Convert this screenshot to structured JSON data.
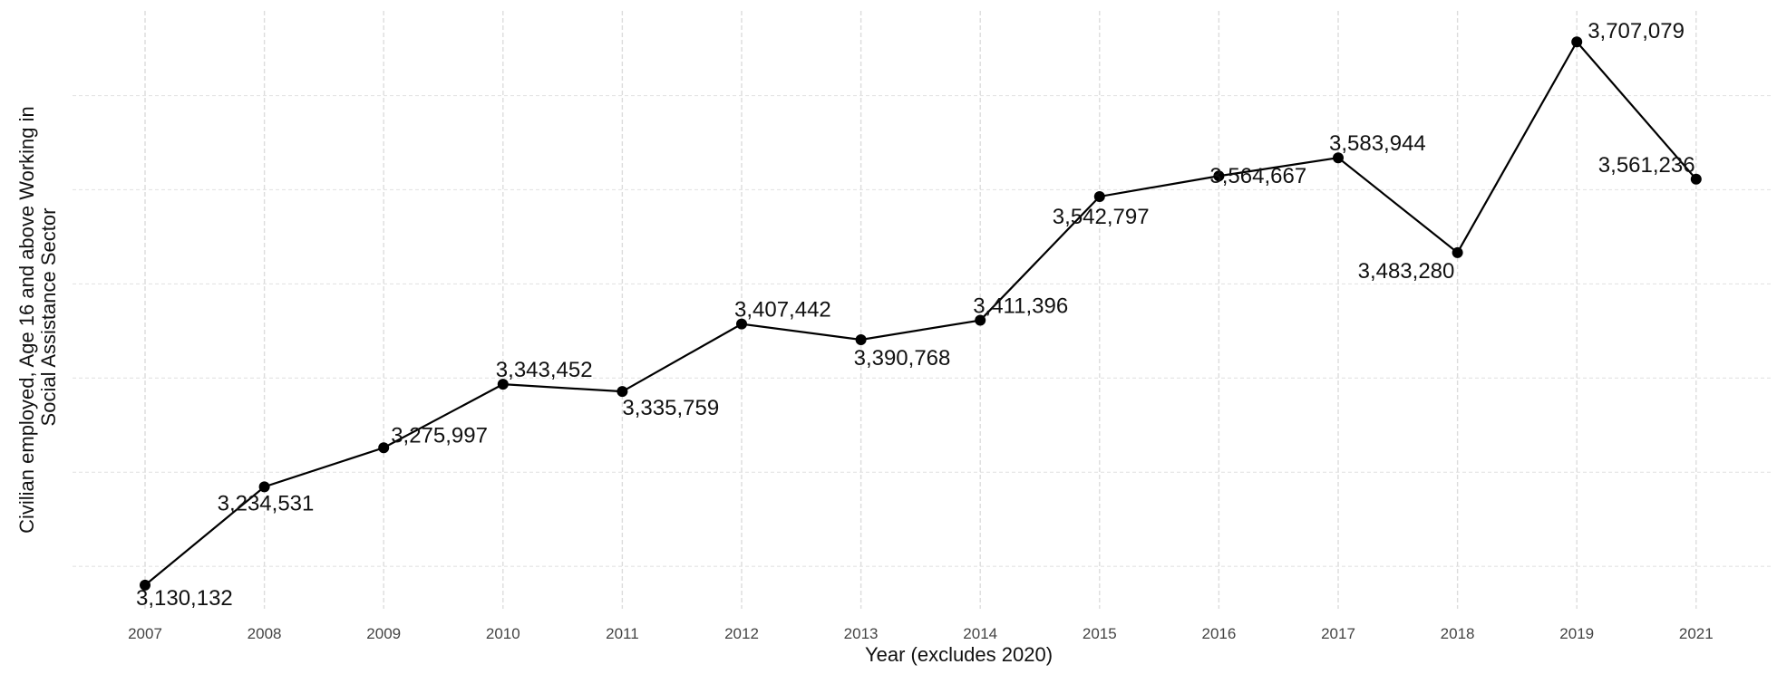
{
  "chart_data": {
    "type": "line",
    "title": "",
    "xlabel": "Year (excludes 2020)",
    "ylabel_lines": [
      "Civilian employed, Age 16 and above Working in",
      "Social Assistance Sector"
    ],
    "categories": [
      "2007",
      "2008",
      "2009",
      "2010",
      "2011",
      "2012",
      "2013",
      "2014",
      "2015",
      "2016",
      "2017",
      "2018",
      "2019",
      "2021"
    ],
    "series": [
      {
        "values": [
          3130132,
          3234531,
          3275997,
          3343452,
          3335759,
          3407442,
          3390768,
          3411396,
          3542797,
          3564667,
          3583944,
          3483280,
          3707079,
          3561236
        ],
        "labels": [
          "3,130,132",
          "3,234,531",
          "3,275,997",
          "3,343,452",
          "3,335,759",
          "3,407,442",
          "3,390,768",
          "3,411,396",
          "3,542,797",
          "3,564,667",
          "3,583,944",
          "3,483,280",
          "3,707,079",
          "3,561,236"
        ],
        "color": "#000000"
      }
    ],
    "ylim": [
      3105000,
      3740000
    ],
    "y_gridlines": [
      3150000,
      3250000,
      3350000,
      3450000,
      3550000,
      3650000
    ],
    "y_tick_labels_shown": false,
    "grid": true,
    "legend": "none"
  }
}
